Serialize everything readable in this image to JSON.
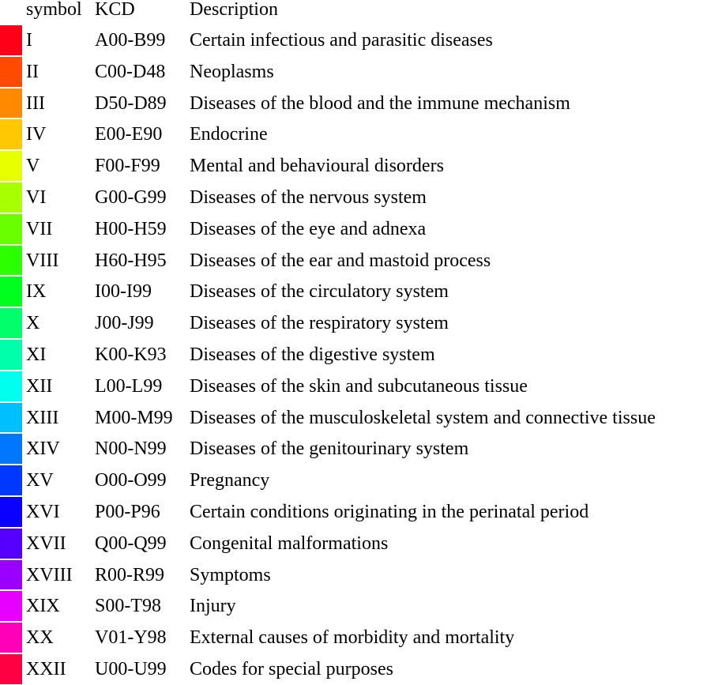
{
  "header": {
    "symbol": "symbol",
    "kcd": "KCD",
    "description": "Description"
  },
  "rows": [
    {
      "symbol": "I",
      "kcd": "A00-B99",
      "description": "Certain infectious and parasitic diseases",
      "color": "#ff0019"
    },
    {
      "symbol": "II",
      "kcd": "C00-D48",
      "description": "Neoplasms",
      "color": "#ff4b00"
    },
    {
      "symbol": "III",
      "kcd": "D50-D89",
      "description": "Diseases of the blood and the immune mechanism",
      "color": "#ff8a00"
    },
    {
      "symbol": "IV",
      "kcd": "E00-E90",
      "description": "Endocrine",
      "color": "#ffc800"
    },
    {
      "symbol": "V",
      "kcd": "F00-F99",
      "description": "Mental and behavioural disorders",
      "color": "#e8ff00"
    },
    {
      "symbol": "VI",
      "kcd": "G00-G99",
      "description": "Diseases of the nervous system",
      "color": "#a8ff00"
    },
    {
      "symbol": "VII",
      "kcd": "H00-H59",
      "description": "Diseases of the eye and adnexa",
      "color": "#6aff00"
    },
    {
      "symbol": "VIII",
      "kcd": "H60-H95",
      "description": "Diseases of the ear and mastoid process",
      "color": "#2bff00"
    },
    {
      "symbol": "IX",
      "kcd": "I00-I99",
      "description": "Diseases of the circulatory system",
      "color": "#00ff1f"
    },
    {
      "symbol": "X",
      "kcd": "J00-J99",
      "description": "Diseases of the respiratory system",
      "color": "#00ff6a"
    },
    {
      "symbol": "XI",
      "kcd": "K00-K93",
      "description": "Diseases of the digestive system",
      "color": "#00ffaa"
    },
    {
      "symbol": "XII",
      "kcd": "L00-L99",
      "description": "Diseases of the skin and subcutaneous tissue",
      "color": "#00ffee"
    },
    {
      "symbol": "XIII",
      "kcd": "M00-M99",
      "description": "Diseases of the musculoskeletal system and connective tissue",
      "color": "#00bfff"
    },
    {
      "symbol": "XIV",
      "kcd": "N00-N99",
      "description": "Diseases of the genitourinary system",
      "color": "#0077ff"
    },
    {
      "symbol": "XV",
      "kcd": "O00-O99",
      "description": "Pregnancy",
      "color": "#0038ff"
    },
    {
      "symbol": "XVI",
      "kcd": "P00-P96",
      "description": "Certain conditions originating in the perinatal period",
      "color": "#0a00ff"
    },
    {
      "symbol": "XVII",
      "kcd": "Q00-Q99",
      "description": "Congenital malformations",
      "color": "#5500ff"
    },
    {
      "symbol": "XVIII",
      "kcd": "R00-R99",
      "description": "Symptoms",
      "color": "#9a00ff"
    },
    {
      "symbol": "XIX",
      "kcd": "S00-T98",
      "description": "Injury",
      "color": "#e500ff"
    },
    {
      "symbol": "XX",
      "kcd": "V01-Y98",
      "description": "External causes of morbidity and mortality",
      "color": "#ff00b8"
    },
    {
      "symbol": "XXII",
      "kcd": "U00-U99",
      "description": "Codes for special purposes",
      "color": "#ff0040"
    }
  ]
}
